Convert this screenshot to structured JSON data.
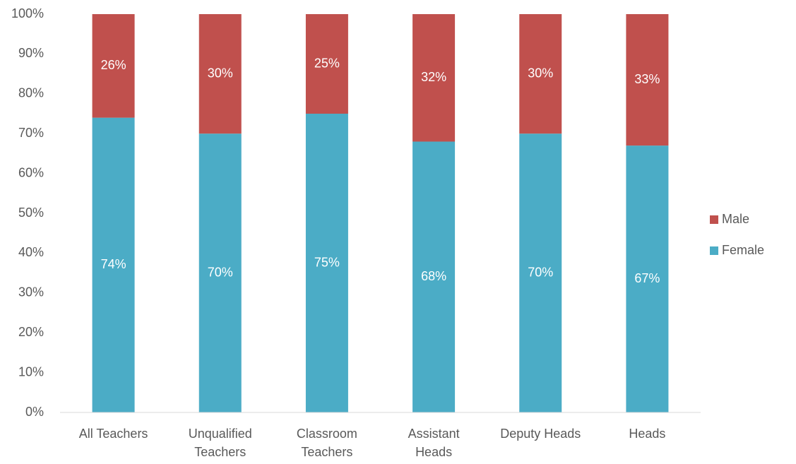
{
  "chart_data": {
    "type": "stacked_bar",
    "categories": [
      "All Teachers",
      "Unqualified Teachers",
      "Classroom Teachers",
      "Assistant Heads",
      "Deputy Heads",
      "Heads"
    ],
    "series": [
      {
        "name": "Female",
        "color": "#4bacc6",
        "values": [
          74,
          70,
          75,
          68,
          70,
          67
        ],
        "value_labels": [
          "74%",
          "70%",
          "75%",
          "68%",
          "70%",
          "67%"
        ]
      },
      {
        "name": "Male",
        "color": "#c0504d",
        "values": [
          26,
          30,
          25,
          32,
          30,
          33
        ],
        "value_labels": [
          "26%",
          "30%",
          "25%",
          "32%",
          "30%",
          "33%"
        ]
      }
    ],
    "ylim": [
      0,
      100
    ],
    "yticks": [
      {
        "value": 0,
        "label": "0%"
      },
      {
        "value": 10,
        "label": "10%"
      },
      {
        "value": 20,
        "label": "20%"
      },
      {
        "value": 30,
        "label": "30%"
      },
      {
        "value": 40,
        "label": "40%"
      },
      {
        "value": 50,
        "label": "50%"
      },
      {
        "value": 60,
        "label": "60%"
      },
      {
        "value": 70,
        "label": "70%"
      },
      {
        "value": 80,
        "label": "80%"
      },
      {
        "value": 90,
        "label": "90%"
      },
      {
        "value": 100,
        "label": "100%"
      }
    ],
    "grid": false,
    "legend": "right"
  }
}
